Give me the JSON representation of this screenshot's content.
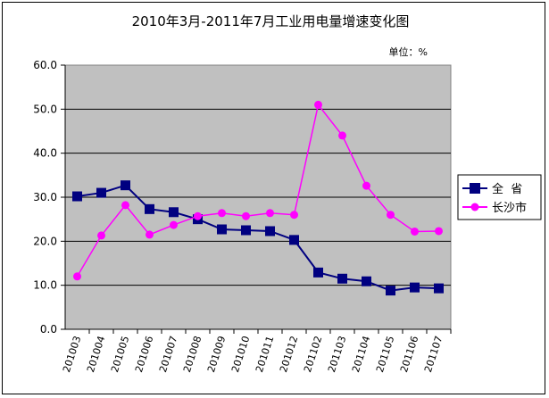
{
  "chart_data": {
    "type": "line",
    "title": "2010年3月-2011年7月工业用电量增速变化图",
    "unit_label": "单位：%",
    "categories": [
      "201003",
      "201004",
      "201005",
      "201006",
      "201007",
      "201008",
      "201009",
      "201010",
      "201011",
      "201012",
      "201102",
      "201103",
      "201104",
      "201105",
      "201106",
      "201107"
    ],
    "ylim": [
      0,
      60
    ],
    "yticks": [
      "0.0",
      "10.0",
      "20.0",
      "30.0",
      "40.0",
      "50.0",
      "60.0"
    ],
    "grid": true,
    "legend_position": "right",
    "plot_background": "#c0c0c0",
    "series": [
      {
        "name": "全  省",
        "color": "#000080",
        "marker": "square",
        "values": [
          30.2,
          31.0,
          32.7,
          27.3,
          26.6,
          25.0,
          22.7,
          22.5,
          22.3,
          20.3,
          12.9,
          11.5,
          10.9,
          8.8,
          9.5,
          9.3
        ]
      },
      {
        "name": "长沙市",
        "color": "#ff00ff",
        "marker": "circle",
        "values": [
          12.0,
          21.3,
          28.2,
          21.5,
          23.7,
          25.7,
          26.4,
          25.7,
          26.4,
          26.0,
          51.0,
          44.0,
          32.6,
          26.0,
          22.2,
          22.3
        ]
      }
    ]
  }
}
